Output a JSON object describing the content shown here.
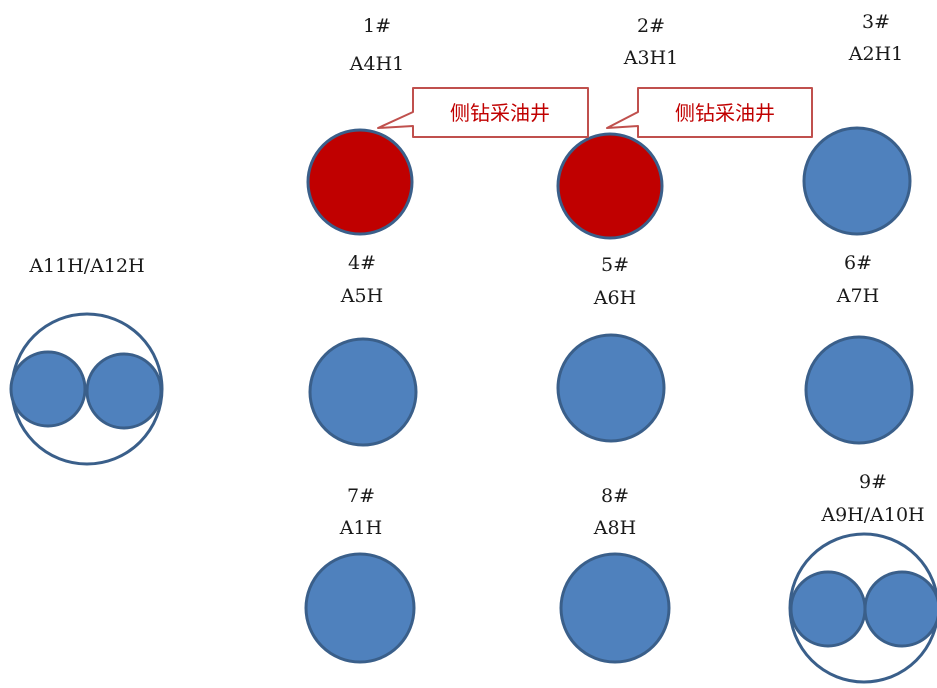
{
  "colors": {
    "blue_fill": "#4f81bd",
    "red_fill": "#c00000",
    "outline": "#3a5f8a",
    "callout_border": "#c0504d",
    "callout_text": "#c00000"
  },
  "wells": [
    {
      "id": "w1",
      "num": "1#",
      "name": "A4H1",
      "color": "red"
    },
    {
      "id": "w2",
      "num": "2#",
      "name": "A3H1",
      "color": "red"
    },
    {
      "id": "w3",
      "num": "3#",
      "name": "A2H1",
      "color": "blue"
    },
    {
      "id": "w4",
      "num": "4#",
      "name": "A5H",
      "color": "blue"
    },
    {
      "id": "w5",
      "num": "5#",
      "name": "A6H",
      "color": "blue"
    },
    {
      "id": "w6",
      "num": "6#",
      "name": "A7H",
      "color": "blue"
    },
    {
      "id": "w7",
      "num": "7#",
      "name": "A1H",
      "color": "blue"
    },
    {
      "id": "w8",
      "num": "8#",
      "name": "A8H",
      "color": "blue"
    },
    {
      "id": "w9",
      "num": "9#",
      "name": "A9H/A10H",
      "color": "blue"
    },
    {
      "id": "w10",
      "num": "",
      "name": "A11H/A12H",
      "color": "blue"
    }
  ],
  "callouts": [
    {
      "id": "c1",
      "text": "侧钻采油井"
    },
    {
      "id": "c2",
      "text": "侧钻采油井"
    }
  ]
}
